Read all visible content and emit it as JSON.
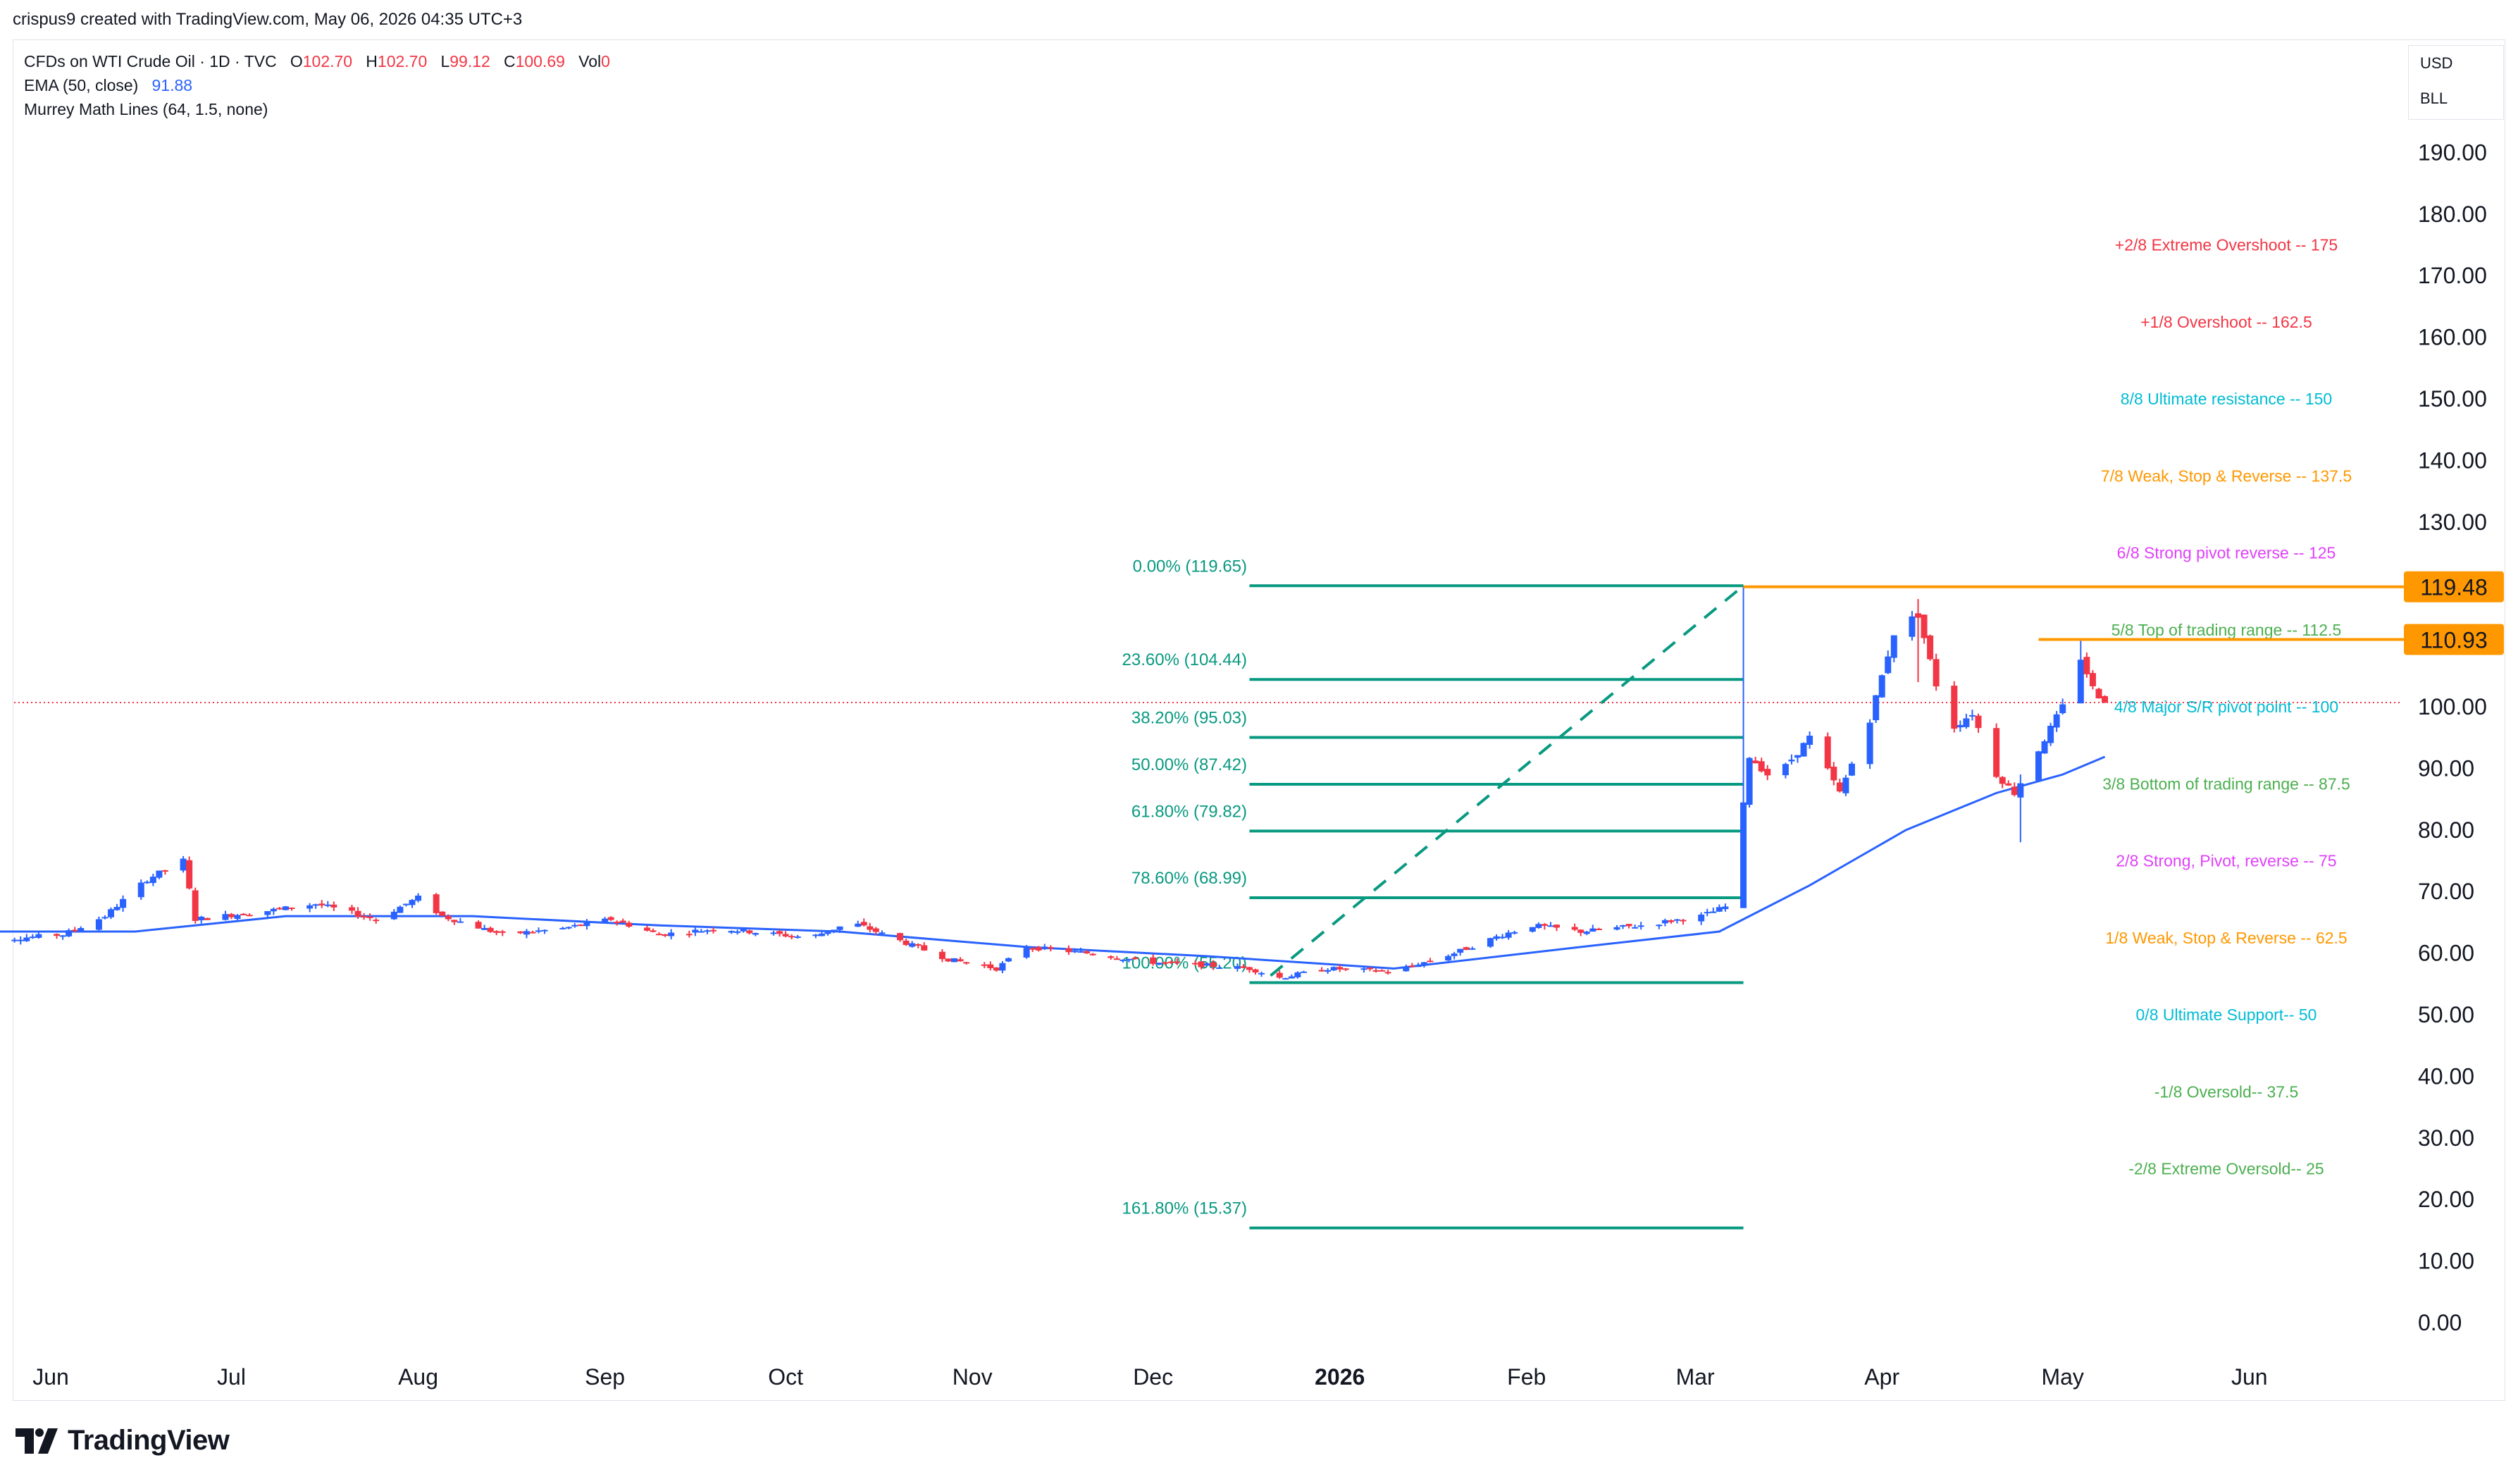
{
  "header": {
    "credit": "crispus9 created with TradingView.com, May 06, 2026 04:35 UTC+3"
  },
  "legend": {
    "symbol": "CFDs on WTI Crude Oil · 1D · TVC",
    "o_label": "O",
    "o_value": "102.70",
    "h_label": "H",
    "h_value": "102.70",
    "l_label": "L",
    "l_value": "99.12",
    "c_label": "C",
    "c_value": "100.69",
    "vol_label": "Vol",
    "vol_value": "0",
    "ema_label": "EMA (50, close)",
    "ema_value": "91.88",
    "murrey_label": "Murrey Math Lines (64, 1.5, none)"
  },
  "units": {
    "currency": "USD",
    "unit": "BLL"
  },
  "brand": {
    "name": "TradingView"
  },
  "chart_data": {
    "type": "candlestick",
    "y_axis": {
      "ticks": [
        "0.00",
        "10.00",
        "20.00",
        "30.00",
        "40.00",
        "50.00",
        "60.00",
        "70.00",
        "80.00",
        "90.00",
        "100.00",
        "110.00",
        "120.00",
        "130.00",
        "140.00",
        "150.00",
        "160.00",
        "170.00",
        "180.00",
        "190.00"
      ],
      "range": [
        0,
        198
      ]
    },
    "x_axis": {
      "labels": [
        {
          "date": "2025-06-01",
          "text": "Jun"
        },
        {
          "date": "2025-07-01",
          "text": "Jul"
        },
        {
          "date": "2025-08-01",
          "text": "Aug"
        },
        {
          "date": "2025-09-01",
          "text": "Sep"
        },
        {
          "date": "2025-10-01",
          "text": "Oct"
        },
        {
          "date": "2025-11-01",
          "text": "Nov"
        },
        {
          "date": "2025-12-01",
          "text": "Dec"
        },
        {
          "date": "2026-01-01",
          "text": "2026",
          "bold": true
        },
        {
          "date": "2026-02-01",
          "text": "Feb"
        },
        {
          "date": "2026-03-01",
          "text": "Mar"
        },
        {
          "date": "2026-04-01",
          "text": "Apr"
        },
        {
          "date": "2026-05-01",
          "text": "May"
        },
        {
          "date": "2026-06-01",
          "text": "Jun"
        }
      ]
    },
    "price_segments": [
      {
        "date": "2025-05-20",
        "price": 62.0
      },
      {
        "date": "2025-06-03",
        "price": 63.0
      },
      {
        "date": "2025-06-10",
        "price": 66.0
      },
      {
        "date": "2025-06-17",
        "price": 72.0
      },
      {
        "date": "2025-06-23",
        "price": 75.0
      },
      {
        "date": "2025-06-25",
        "price": 65.5
      },
      {
        "date": "2025-07-08",
        "price": 67.0
      },
      {
        "date": "2025-07-15",
        "price": 68.0
      },
      {
        "date": "2025-07-25",
        "price": 65.5
      },
      {
        "date": "2025-08-01",
        "price": 69.0
      },
      {
        "date": "2025-08-05",
        "price": 66.0
      },
      {
        "date": "2025-08-15",
        "price": 63.0
      },
      {
        "date": "2025-08-25",
        "price": 64.0
      },
      {
        "date": "2025-09-02",
        "price": 65.5
      },
      {
        "date": "2025-09-10",
        "price": 63.0
      },
      {
        "date": "2025-09-20",
        "price": 64.0
      },
      {
        "date": "2025-10-05",
        "price": 62.5
      },
      {
        "date": "2025-10-12",
        "price": 65.0
      },
      {
        "date": "2025-10-20",
        "price": 62.0
      },
      {
        "date": "2025-10-28",
        "price": 59.0
      },
      {
        "date": "2025-11-05",
        "price": 57.5
      },
      {
        "date": "2025-11-10",
        "price": 61.0
      },
      {
        "date": "2025-11-20",
        "price": 60.0
      },
      {
        "date": "2025-12-01",
        "price": 58.5
      },
      {
        "date": "2025-12-10",
        "price": 58.0
      },
      {
        "date": "2025-12-17",
        "price": 57.5
      },
      {
        "date": "2025-12-22",
        "price": 56.0
      },
      {
        "date": "2025-12-30",
        "price": 57.5
      },
      {
        "date": "2026-01-10",
        "price": 57.0
      },
      {
        "date": "2026-01-20",
        "price": 60.0
      },
      {
        "date": "2026-01-28",
        "price": 63.0
      },
      {
        "date": "2026-02-02",
        "price": 64.5
      },
      {
        "date": "2026-02-10",
        "price": 63.5
      },
      {
        "date": "2026-02-20",
        "price": 64.5
      },
      {
        "date": "2026-03-02",
        "price": 66.0
      },
      {
        "date": "2026-03-06",
        "price": 67.5
      },
      {
        "date": "2026-03-08",
        "price": 76.0
      },
      {
        "date": "2026-03-10",
        "price": 92.0
      },
      {
        "date": "2026-03-14",
        "price": 88.0
      },
      {
        "date": "2026-03-20",
        "price": 95.0
      },
      {
        "date": "2026-03-25",
        "price": 86.0
      },
      {
        "date": "2026-03-30",
        "price": 98.0
      },
      {
        "date": "2026-04-03",
        "price": 112.0
      },
      {
        "date": "2026-04-07",
        "price": 115.0
      },
      {
        "date": "2026-04-12",
        "price": 96.0
      },
      {
        "date": "2026-04-16",
        "price": 99.0
      },
      {
        "date": "2026-04-20",
        "price": 89.0
      },
      {
        "date": "2026-04-23",
        "price": 86.0
      },
      {
        "date": "2026-04-27",
        "price": 93.0
      },
      {
        "date": "2026-05-01",
        "price": 100.0
      },
      {
        "date": "2026-05-04",
        "price": 108.0
      },
      {
        "date": "2026-05-06",
        "price": 103.0
      },
      {
        "date": "2026-05-08",
        "price": 100.69
      }
    ],
    "candle_extremes": [
      {
        "date": "2026-03-09",
        "high": 119.48,
        "low": 75.0
      },
      {
        "date": "2026-04-07",
        "high": 117.5,
        "low": 104.0
      },
      {
        "date": "2026-04-24",
        "high": 89.0,
        "low": 78.0
      },
      {
        "date": "2026-05-04",
        "high": 110.93,
        "low": 103.0
      }
    ],
    "ema": [
      {
        "date": "2025-05-20",
        "value": 63.5
      },
      {
        "date": "2025-06-15",
        "value": 63.5
      },
      {
        "date": "2025-07-10",
        "value": 66.0
      },
      {
        "date": "2025-08-10",
        "value": 66.0
      },
      {
        "date": "2025-09-10",
        "value": 64.5
      },
      {
        "date": "2025-10-10",
        "value": 63.5
      },
      {
        "date": "2025-11-10",
        "value": 61.0
      },
      {
        "date": "2025-12-10",
        "value": 59.5
      },
      {
        "date": "2026-01-10",
        "value": 57.5
      },
      {
        "date": "2026-02-10",
        "value": 61.0
      },
      {
        "date": "2026-03-05",
        "value": 63.5
      },
      {
        "date": "2026-03-20",
        "value": 71.0
      },
      {
        "date": "2026-04-05",
        "value": 80.0
      },
      {
        "date": "2026-04-20",
        "value": 86.0
      },
      {
        "date": "2026-05-01",
        "value": 89.0
      },
      {
        "date": "2026-05-08",
        "value": 91.88
      }
    ],
    "current_price_line": 100.69,
    "fibonacci": {
      "start": "2025-12-17",
      "end": "2026-03-09",
      "trend_from": 55.2,
      "trend_to": 119.65,
      "levels": [
        {
          "label": "0.00% (119.65)",
          "price": 119.65
        },
        {
          "label": "23.60% (104.44)",
          "price": 104.44
        },
        {
          "label": "38.20% (95.03)",
          "price": 95.03
        },
        {
          "label": "50.00% (87.42)",
          "price": 87.42
        },
        {
          "label": "61.80% (79.82)",
          "price": 79.82
        },
        {
          "label": "78.60% (68.99)",
          "price": 68.99
        },
        {
          "label": "100.00% (55.20)",
          "price": 55.2
        },
        {
          "label": "161.80% (15.37)",
          "price": 15.37
        }
      ]
    },
    "horizontal_lines": [
      {
        "price": 119.48,
        "start": "2026-03-09",
        "label": "119.48"
      },
      {
        "price": 110.93,
        "start": "2026-04-27",
        "label": "110.93"
      }
    ],
    "murrey_lines": [
      {
        "text": "+2/8 Extreme Overshoot --  175",
        "price": 175,
        "color": "#f23645"
      },
      {
        "text": "+1/8 Overshoot --  162.5",
        "price": 162.5,
        "color": "#f23645"
      },
      {
        "text": "8/8 Ultimate resistance --  150",
        "price": 150,
        "color": "#00bcd4"
      },
      {
        "text": "7/8 Weak, Stop & Reverse --  137.5",
        "price": 137.5,
        "color": "#ff9800"
      },
      {
        "text": "6/8 Strong pivot reverse --  125",
        "price": 125,
        "color": "#e040fb"
      },
      {
        "text": "5/8 Top of trading range --  112.5",
        "price": 112.5,
        "color": "#4caf50"
      },
      {
        "text": "4/8 Major S/R pivot point --  100",
        "price": 100,
        "color": "#00bcd4"
      },
      {
        "text": "3/8 Bottom of trading range --  87.5",
        "price": 87.5,
        "color": "#4caf50"
      },
      {
        "text": "2/8 Strong, Pivot, reverse --  75",
        "price": 75,
        "color": "#e040fb"
      },
      {
        "text": "1/8 Weak, Stop & Reverse --  62.5",
        "price": 62.5,
        "color": "#ff9800"
      },
      {
        "text": "0/8 Ultimate Support--  50",
        "price": 50,
        "color": "#00bcd4"
      },
      {
        "text": "-1/8 Oversold--  37.5",
        "price": 37.5,
        "color": "#4caf50"
      },
      {
        "text": "-2/8 Extreme Oversold--  25",
        "price": 25,
        "color": "#4caf50"
      }
    ],
    "colors": {
      "up": "#2962ff",
      "down": "#f23645",
      "ema": "#2962ff",
      "fib": "#089981",
      "level_line": "#ff9800",
      "price_line": "#f23645",
      "axis_text": "#131722"
    }
  }
}
